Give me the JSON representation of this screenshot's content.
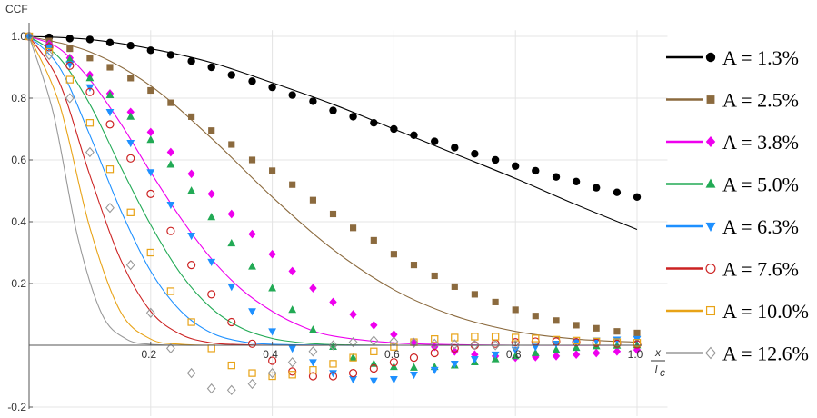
{
  "chart_data": {
    "type": "line",
    "title": "",
    "ylabel": "CCF",
    "xlabel_numerator": "x",
    "xlabel_denominator": "l",
    "xlabel_denominator_sub": "c",
    "xlim": [
      0,
      1.05
    ],
    "ylim": [
      -0.2,
      1.02
    ],
    "xticks": [
      0.2,
      0.4,
      0.6,
      0.8,
      1.0
    ],
    "xtick_labels": [
      "0.2",
      "0.4",
      "0.6",
      "0.8",
      "1.0"
    ],
    "yticks": [
      -0.2,
      0.2,
      0.4,
      0.6,
      0.8,
      1.0
    ],
    "ytick_labels": [
      "-0.2",
      "0.2",
      "0.4",
      "0.6",
      "0.8",
      "1.0"
    ],
    "grid": true,
    "legend_position": "right",
    "series": [
      {
        "name": "A = 1.3%",
        "color": "#000000",
        "marker": "filled-circle",
        "line_x": [
          0,
          0.1,
          0.2,
          0.3,
          0.4,
          0.5,
          0.6,
          0.7,
          0.8,
          0.9,
          1.0
        ],
        "line_y": [
          1.0,
          0.99,
          0.96,
          0.915,
          0.85,
          0.78,
          0.7,
          0.62,
          0.54,
          0.455,
          0.375
        ],
        "x": [
          0,
          0.033,
          0.067,
          0.1,
          0.133,
          0.167,
          0.2,
          0.233,
          0.267,
          0.3,
          0.333,
          0.367,
          0.4,
          0.433,
          0.467,
          0.5,
          0.533,
          0.567,
          0.6,
          0.633,
          0.667,
          0.7,
          0.733,
          0.767,
          0.8,
          0.833,
          0.867,
          0.9,
          0.933,
          0.967,
          1.0
        ],
        "y": [
          1.0,
          0.997,
          0.993,
          0.99,
          0.98,
          0.97,
          0.955,
          0.94,
          0.92,
          0.9,
          0.875,
          0.855,
          0.835,
          0.81,
          0.79,
          0.76,
          0.74,
          0.72,
          0.7,
          0.68,
          0.66,
          0.64,
          0.62,
          0.6,
          0.58,
          0.565,
          0.545,
          0.53,
          0.51,
          0.495,
          0.48
        ]
      },
      {
        "name": "A = 2.5%",
        "color": "#8B6A3E",
        "marker": "filled-square",
        "line_x": [
          0,
          0.1,
          0.2,
          0.3,
          0.4,
          0.5,
          0.6,
          0.7,
          0.8,
          0.9,
          1.0
        ],
        "line_y": [
          1.0,
          0.95,
          0.84,
          0.67,
          0.48,
          0.31,
          0.18,
          0.095,
          0.045,
          0.02,
          0.01
        ],
        "x": [
          0,
          0.033,
          0.067,
          0.1,
          0.133,
          0.167,
          0.2,
          0.233,
          0.267,
          0.3,
          0.333,
          0.367,
          0.4,
          0.433,
          0.467,
          0.5,
          0.533,
          0.567,
          0.6,
          0.633,
          0.667,
          0.7,
          0.733,
          0.767,
          0.8,
          0.833,
          0.867,
          0.9,
          0.933,
          0.967,
          1.0
        ],
        "y": [
          1.0,
          0.985,
          0.96,
          0.93,
          0.9,
          0.865,
          0.825,
          0.785,
          0.74,
          0.695,
          0.65,
          0.6,
          0.565,
          0.52,
          0.47,
          0.425,
          0.38,
          0.34,
          0.295,
          0.26,
          0.225,
          0.19,
          0.165,
          0.14,
          0.115,
          0.095,
          0.08,
          0.065,
          0.055,
          0.045,
          0.04
        ]
      },
      {
        "name": "A = 3.8%",
        "color": "#EE00EE",
        "marker": "filled-diamond",
        "line_x": [
          0,
          0.05,
          0.1,
          0.15,
          0.2,
          0.25,
          0.3,
          0.35,
          0.4,
          0.45,
          0.5,
          0.6,
          0.7,
          0.8,
          1.0
        ],
        "line_y": [
          1.0,
          0.96,
          0.86,
          0.72,
          0.56,
          0.41,
          0.28,
          0.18,
          0.11,
          0.06,
          0.03,
          0.008,
          0.002,
          0.0,
          0.0
        ],
        "x": [
          0,
          0.033,
          0.067,
          0.1,
          0.133,
          0.167,
          0.2,
          0.233,
          0.267,
          0.3,
          0.333,
          0.367,
          0.4,
          0.433,
          0.467,
          0.5,
          0.533,
          0.567,
          0.6,
          0.633,
          0.667,
          0.7,
          0.733,
          0.767,
          0.8,
          0.833,
          0.867,
          0.9,
          0.933,
          0.967,
          1.0
        ],
        "y": [
          1.0,
          0.975,
          0.93,
          0.875,
          0.815,
          0.755,
          0.69,
          0.625,
          0.555,
          0.49,
          0.425,
          0.36,
          0.295,
          0.24,
          0.185,
          0.14,
          0.1,
          0.065,
          0.035,
          0.01,
          -0.005,
          -0.02,
          -0.03,
          -0.035,
          -0.04,
          -0.038,
          -0.035,
          -0.03,
          -0.025,
          -0.02,
          -0.015
        ]
      },
      {
        "name": "A = 5.0%",
        "color": "#22AA55",
        "marker": "filled-triangle-up",
        "line_x": [
          0,
          0.05,
          0.1,
          0.15,
          0.2,
          0.25,
          0.3,
          0.35,
          0.4,
          0.45,
          0.5,
          0.6,
          0.8,
          1.0
        ],
        "line_y": [
          1.0,
          0.93,
          0.78,
          0.58,
          0.39,
          0.23,
          0.12,
          0.055,
          0.022,
          0.008,
          0.002,
          0.0,
          0.0,
          0.0
        ],
        "x": [
          0,
          0.033,
          0.067,
          0.1,
          0.133,
          0.167,
          0.2,
          0.233,
          0.267,
          0.3,
          0.333,
          0.367,
          0.4,
          0.433,
          0.467,
          0.5,
          0.533,
          0.567,
          0.6,
          0.633,
          0.667,
          0.7,
          0.733,
          0.767,
          0.8,
          0.833,
          0.867,
          0.9,
          0.933,
          0.967,
          1.0
        ],
        "y": [
          1.0,
          0.97,
          0.925,
          0.865,
          0.81,
          0.74,
          0.665,
          0.585,
          0.5,
          0.415,
          0.33,
          0.255,
          0.185,
          0.115,
          0.05,
          -0.005,
          -0.04,
          -0.06,
          -0.07,
          -0.072,
          -0.07,
          -0.065,
          -0.055,
          -0.045,
          -0.035,
          -0.025,
          -0.015,
          -0.008,
          -0.003,
          -0.001,
          0.0
        ]
      },
      {
        "name": "A = 6.3%",
        "color": "#1E90FF",
        "marker": "filled-triangle-down",
        "line_x": [
          0,
          0.05,
          0.1,
          0.15,
          0.2,
          0.25,
          0.3,
          0.35,
          0.4,
          0.5,
          0.6,
          0.8,
          1.0
        ],
        "line_y": [
          1.0,
          0.9,
          0.68,
          0.44,
          0.24,
          0.11,
          0.04,
          0.012,
          0.003,
          0.0,
          0.0,
          0.0,
          0.0
        ],
        "x": [
          0,
          0.033,
          0.067,
          0.1,
          0.133,
          0.167,
          0.2,
          0.233,
          0.267,
          0.3,
          0.333,
          0.367,
          0.4,
          0.433,
          0.467,
          0.5,
          0.533,
          0.567,
          0.6,
          0.633,
          0.667,
          0.7,
          0.733,
          0.767,
          0.8,
          0.833,
          0.867,
          0.9,
          0.933,
          0.967,
          1.0
        ],
        "y": [
          1.0,
          0.965,
          0.91,
          0.835,
          0.755,
          0.655,
          0.56,
          0.455,
          0.355,
          0.27,
          0.19,
          0.11,
          0.045,
          -0.01,
          -0.055,
          -0.09,
          -0.11,
          -0.115,
          -0.11,
          -0.095,
          -0.08,
          -0.06,
          -0.045,
          -0.03,
          -0.015,
          -0.005,
          0.005,
          0.01,
          0.015,
          0.018,
          0.02
        ]
      },
      {
        "name": "A = 7.6%",
        "color": "#CC2222",
        "marker": "open-circle",
        "line_x": [
          0,
          0.05,
          0.1,
          0.15,
          0.2,
          0.25,
          0.3,
          0.35,
          0.4,
          0.5,
          0.6,
          0.8,
          1.0
        ],
        "line_y": [
          1.0,
          0.85,
          0.55,
          0.28,
          0.11,
          0.035,
          0.008,
          0.002,
          0.0,
          0.0,
          0.0,
          0.0,
          0.0
        ],
        "x": [
          0,
          0.033,
          0.067,
          0.1,
          0.133,
          0.167,
          0.2,
          0.233,
          0.267,
          0.3,
          0.333,
          0.367,
          0.4,
          0.433,
          0.467,
          0.5,
          0.533,
          0.567,
          0.6,
          0.633,
          0.667,
          0.7,
          0.733,
          0.767,
          0.8,
          0.833,
          0.867,
          0.9,
          0.933,
          0.967,
          1.0
        ],
        "y": [
          1.0,
          0.965,
          0.905,
          0.82,
          0.715,
          0.605,
          0.49,
          0.37,
          0.26,
          0.165,
          0.075,
          0.005,
          -0.05,
          -0.085,
          -0.1,
          -0.1,
          -0.09,
          -0.075,
          -0.055,
          -0.04,
          -0.025,
          -0.01,
          0.0,
          0.005,
          0.01,
          0.012,
          0.012,
          0.01,
          0.008,
          0.005,
          0.003
        ]
      },
      {
        "name": "A = 10.0%",
        "color": "#E8A317",
        "marker": "open-square",
        "line_x": [
          0,
          0.05,
          0.1,
          0.15,
          0.2,
          0.25,
          0.3,
          0.4,
          0.6,
          0.8,
          1.0
        ],
        "line_y": [
          1.0,
          0.78,
          0.38,
          0.11,
          0.02,
          0.003,
          0.0,
          0.0,
          0.0,
          0.0,
          0.0
        ],
        "x": [
          0,
          0.033,
          0.067,
          0.1,
          0.133,
          0.167,
          0.2,
          0.233,
          0.267,
          0.3,
          0.333,
          0.367,
          0.4,
          0.433,
          0.467,
          0.5,
          0.533,
          0.567,
          0.6,
          0.633,
          0.667,
          0.7,
          0.733,
          0.767,
          0.8,
          0.833,
          0.867,
          0.9,
          0.933,
          0.967,
          1.0
        ],
        "y": [
          1.0,
          0.95,
          0.86,
          0.72,
          0.57,
          0.43,
          0.3,
          0.175,
          0.075,
          -0.01,
          -0.065,
          -0.09,
          -0.1,
          -0.095,
          -0.08,
          -0.06,
          -0.04,
          -0.02,
          -0.005,
          0.01,
          0.02,
          0.025,
          0.028,
          0.028,
          0.025,
          0.022,
          0.018,
          0.015,
          0.012,
          0.01,
          0.008
        ]
      },
      {
        "name": "A = 12.6%",
        "color": "#999999",
        "marker": "open-diamond",
        "line_x": [
          0,
          0.04,
          0.08,
          0.12,
          0.16,
          0.2,
          0.25,
          0.3,
          0.4,
          0.6,
          0.8,
          1.0
        ],
        "line_y": [
          1.0,
          0.75,
          0.35,
          0.1,
          0.02,
          0.003,
          0.0,
          0.0,
          0.0,
          0.0,
          0.0,
          0.0
        ],
        "x": [
          0,
          0.033,
          0.067,
          0.1,
          0.133,
          0.167,
          0.2,
          0.233,
          0.267,
          0.3,
          0.333,
          0.367,
          0.4,
          0.433,
          0.467,
          0.5,
          0.533,
          0.567,
          0.6,
          0.633,
          0.667,
          0.7,
          0.733,
          0.767,
          0.8
        ],
        "y": [
          1.0,
          0.94,
          0.8,
          0.625,
          0.445,
          0.26,
          0.105,
          -0.01,
          -0.09,
          -0.14,
          -0.145,
          -0.125,
          -0.09,
          -0.055,
          -0.02,
          0.0,
          0.01,
          0.015,
          0.012,
          0.008,
          0.005,
          0.003,
          0.001,
          0.0,
          0.0
        ]
      }
    ]
  }
}
